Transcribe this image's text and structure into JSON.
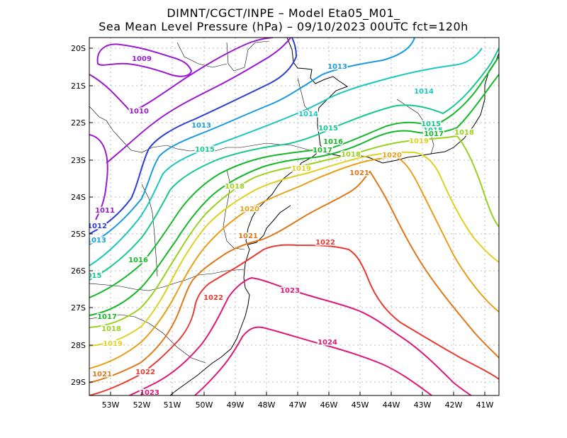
{
  "title_line1": "DIMNT/CGCT/INPE –  Model Eta05_M01_",
  "title_line2": "Sea Mean Level Pressure (hPa) – 09/10/2023 00UTC fct=120h",
  "lat_labels": [
    "20S",
    "21S",
    "22S",
    "23S",
    "24S",
    "25S",
    "26S",
    "27S",
    "28S",
    "29S"
  ],
  "lon_labels": [
    "53W",
    "52W",
    "51W",
    "50W",
    "49W",
    "48W",
    "47W",
    "46W",
    "45W",
    "44W",
    "43W",
    "42W",
    "41W"
  ],
  "contour_labels": [
    {
      "text": "1009",
      "color": "#9a1ad0"
    },
    {
      "text": "1010",
      "color": "#9a1ad0"
    },
    {
      "text": "1011",
      "color": "#9a1ad0"
    },
    {
      "text": "1012",
      "color": "#2b3fd6"
    },
    {
      "text": "1013",
      "color": "#1a9be0"
    },
    {
      "text": "1013",
      "color": "#1a9be0"
    },
    {
      "text": "1013",
      "color": "#1a9be0"
    },
    {
      "text": "1014",
      "color": "#18c7c0"
    },
    {
      "text": "1014",
      "color": "#18c7c0"
    },
    {
      "text": "015",
      "color": "#14c98a"
    },
    {
      "text": "1015",
      "color": "#14c98a"
    },
    {
      "text": "1015",
      "color": "#14c98a"
    },
    {
      "text": "1015",
      "color": "#14c98a"
    },
    {
      "text": "1015",
      "color": "#14c98a"
    },
    {
      "text": "1016",
      "color": "#16b82a"
    },
    {
      "text": "1016",
      "color": "#16b82a"
    },
    {
      "text": "1017",
      "color": "#16b82a"
    },
    {
      "text": "1017",
      "color": "#16b82a"
    },
    {
      "text": "1017",
      "color": "#16b82a"
    },
    {
      "text": "1018",
      "color": "#9ad11c"
    },
    {
      "text": "1018",
      "color": "#9ad11c"
    },
    {
      "text": "1018",
      "color": "#9ad11c"
    },
    {
      "text": "1018",
      "color": "#9ad11c"
    },
    {
      "text": "1019",
      "color": "#e0d020"
    },
    {
      "text": "1019",
      "color": "#e0d020"
    },
    {
      "text": "1019",
      "color": "#e0d020"
    },
    {
      "text": "1020",
      "color": "#e8a018"
    },
    {
      "text": "1020",
      "color": "#e8a018"
    },
    {
      "text": "1021",
      "color": "#e07818"
    },
    {
      "text": "1021",
      "color": "#e07818"
    },
    {
      "text": "1021",
      "color": "#e07818"
    },
    {
      "text": "1022",
      "color": "#e83a32"
    },
    {
      "text": "1022",
      "color": "#e83a32"
    },
    {
      "text": "1022",
      "color": "#e83a32"
    },
    {
      "text": "1023",
      "color": "#e01878"
    },
    {
      "text": "1023",
      "color": "#e01878"
    },
    {
      "text": "1024",
      "color": "#e01878"
    }
  ]
}
